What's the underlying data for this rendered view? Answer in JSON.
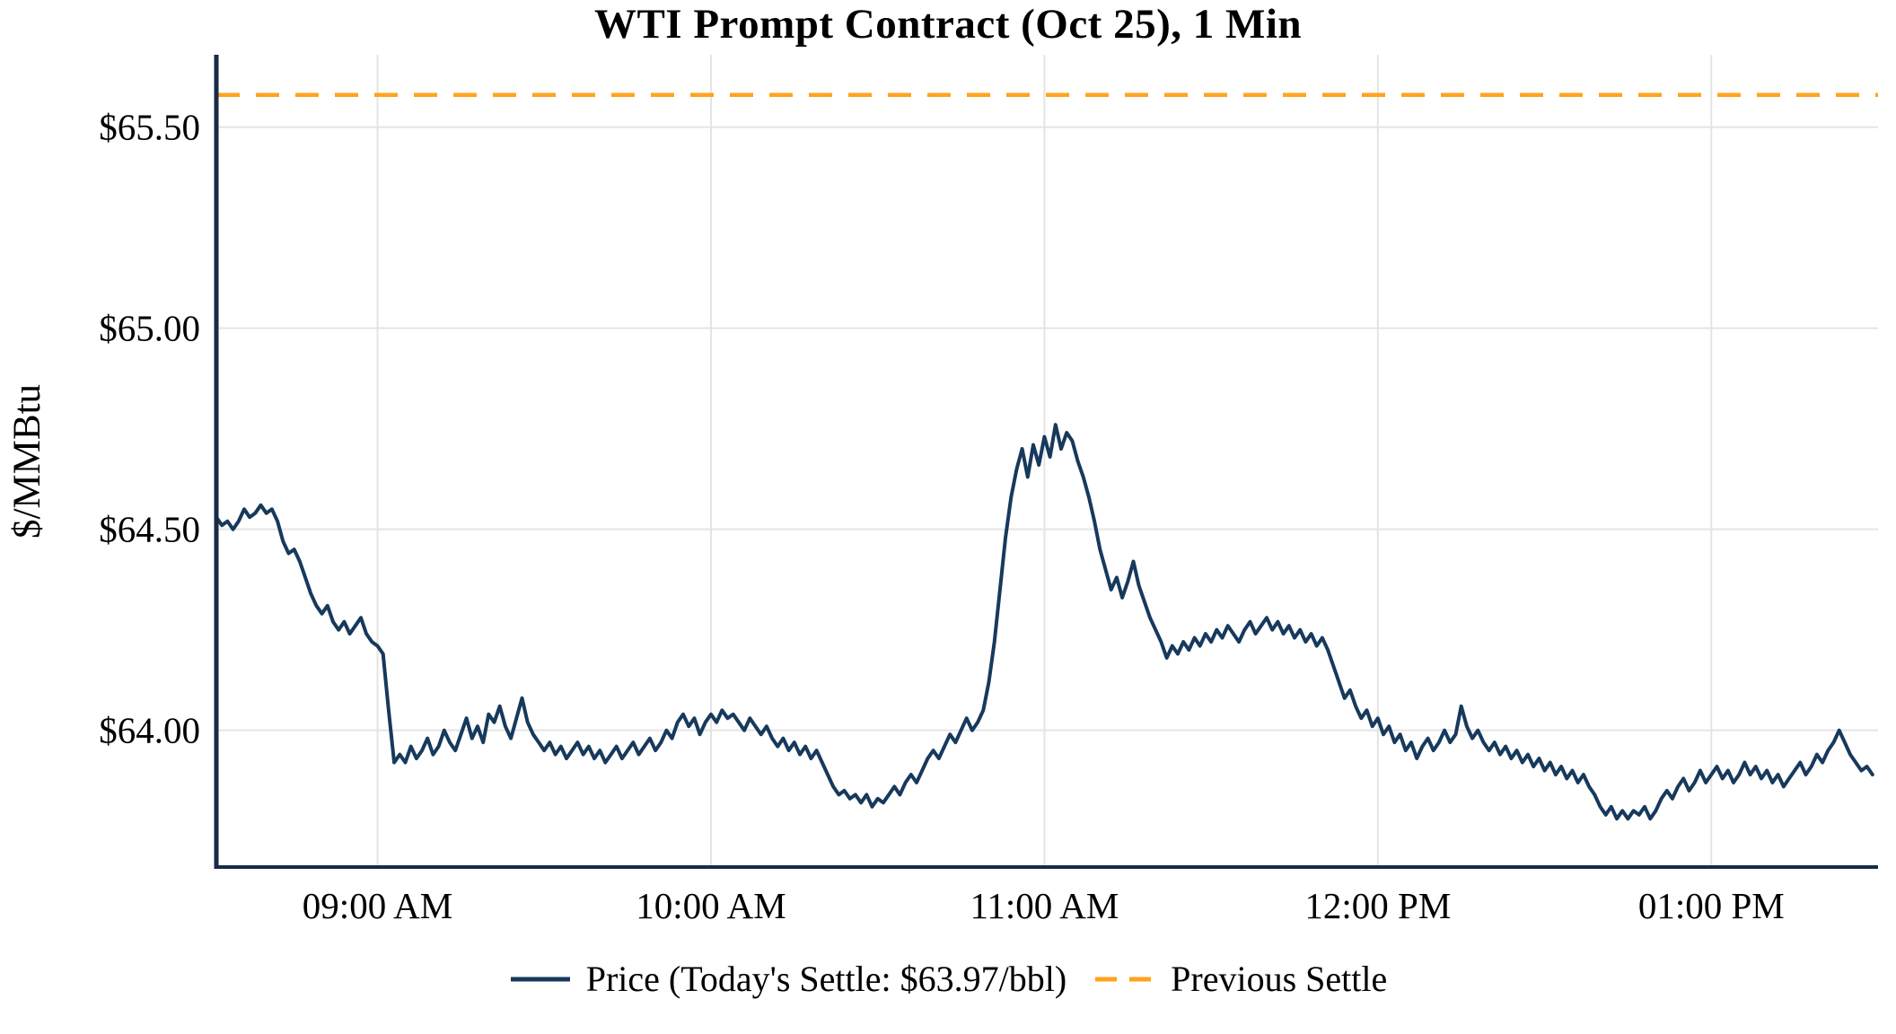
{
  "chart_data": {
    "type": "line",
    "title": "WTI Prompt Contract (Oct 25), 1 Min",
    "ylabel": "$/MMBtu",
    "xlim": [
      511,
      810
    ],
    "ylim": [
      63.66,
      65.68
    ],
    "grid": true,
    "legend_position": "bottom",
    "x_ticks": [
      {
        "value": 540,
        "label": "09:00 AM"
      },
      {
        "value": 600,
        "label": "10:00 AM"
      },
      {
        "value": 660,
        "label": "11:00 AM"
      },
      {
        "value": 720,
        "label": "12:00 PM"
      },
      {
        "value": 780,
        "label": "01:00 PM"
      }
    ],
    "y_ticks": [
      {
        "value": 65.5,
        "label": "$65.50"
      },
      {
        "value": 65.0,
        "label": "$65.00"
      },
      {
        "value": 64.5,
        "label": "$64.50"
      },
      {
        "value": 64.0,
        "label": "$64.00"
      }
    ],
    "previous_settle": 65.58,
    "todays_settle": 63.97,
    "legend": [
      {
        "label": "Price (Today's Settle: $63.97/bbl)",
        "style": "solid"
      },
      {
        "label": "Previous Settle",
        "style": "dashed"
      }
    ],
    "colors": {
      "price": "#17395C",
      "prev_settle": "#FFA31E",
      "grid": "#E4E4E4",
      "axis": "#182A46",
      "text": "#000000"
    },
    "series": [
      {
        "name": "Price",
        "t0": 511,
        "dt": 1,
        "prices": [
          64.53,
          64.51,
          64.52,
          64.5,
          64.52,
          64.55,
          64.53,
          64.54,
          64.56,
          64.54,
          64.55,
          64.52,
          64.47,
          64.44,
          64.45,
          64.42,
          64.38,
          64.34,
          64.31,
          64.29,
          64.31,
          64.27,
          64.25,
          64.27,
          64.24,
          64.26,
          64.28,
          64.24,
          64.22,
          64.21,
          64.19,
          64.05,
          63.92,
          63.94,
          63.92,
          63.96,
          63.93,
          63.95,
          63.98,
          63.94,
          63.96,
          64.0,
          63.97,
          63.95,
          63.99,
          64.03,
          63.98,
          64.01,
          63.97,
          64.04,
          64.02,
          64.06,
          64.01,
          63.98,
          64.03,
          64.08,
          64.02,
          63.99,
          63.97,
          63.95,
          63.97,
          63.94,
          63.96,
          63.93,
          63.95,
          63.97,
          63.94,
          63.96,
          63.93,
          63.95,
          63.92,
          63.94,
          63.96,
          63.93,
          63.95,
          63.97,
          63.94,
          63.96,
          63.98,
          63.95,
          63.97,
          64.0,
          63.98,
          64.02,
          64.04,
          64.01,
          64.03,
          63.99,
          64.02,
          64.04,
          64.02,
          64.05,
          64.03,
          64.04,
          64.02,
          64.0,
          64.03,
          64.01,
          63.99,
          64.01,
          63.98,
          63.96,
          63.98,
          63.95,
          63.97,
          63.94,
          63.96,
          63.93,
          63.95,
          63.92,
          63.89,
          63.86,
          63.84,
          63.85,
          63.83,
          63.84,
          63.82,
          63.84,
          63.81,
          63.83,
          63.82,
          63.84,
          63.86,
          63.84,
          63.87,
          63.89,
          63.87,
          63.9,
          63.93,
          63.95,
          63.93,
          63.96,
          63.99,
          63.97,
          64.0,
          64.03,
          64.0,
          64.02,
          64.05,
          64.12,
          64.22,
          64.35,
          64.48,
          64.58,
          64.65,
          64.7,
          64.63,
          64.71,
          64.66,
          64.73,
          64.68,
          64.76,
          64.7,
          64.74,
          64.72,
          64.67,
          64.63,
          64.58,
          64.52,
          64.45,
          64.4,
          64.35,
          64.38,
          64.33,
          64.37,
          64.42,
          64.36,
          64.32,
          64.28,
          64.25,
          64.22,
          64.18,
          64.21,
          64.19,
          64.22,
          64.2,
          64.23,
          64.21,
          64.24,
          64.22,
          64.25,
          64.23,
          64.26,
          64.24,
          64.22,
          64.25,
          64.27,
          64.24,
          64.26,
          64.28,
          64.25,
          64.27,
          64.24,
          64.26,
          64.23,
          64.25,
          64.22,
          64.24,
          64.21,
          64.23,
          64.2,
          64.16,
          64.12,
          64.08,
          64.1,
          64.06,
          64.03,
          64.05,
          64.01,
          64.03,
          63.99,
          64.01,
          63.97,
          63.99,
          63.95,
          63.97,
          63.93,
          63.96,
          63.98,
          63.95,
          63.97,
          64.0,
          63.97,
          63.99,
          64.06,
          64.01,
          63.98,
          64.0,
          63.97,
          63.95,
          63.97,
          63.94,
          63.96,
          63.93,
          63.95,
          63.92,
          63.94,
          63.91,
          63.93,
          63.9,
          63.92,
          63.89,
          63.91,
          63.88,
          63.9,
          63.87,
          63.89,
          63.86,
          63.84,
          63.81,
          63.79,
          63.81,
          63.78,
          63.8,
          63.78,
          63.8,
          63.79,
          63.81,
          63.78,
          63.8,
          63.83,
          63.85,
          63.83,
          63.86,
          63.88,
          63.85,
          63.87,
          63.9,
          63.87,
          63.89,
          63.91,
          63.88,
          63.9,
          63.87,
          63.89,
          63.92,
          63.89,
          63.91,
          63.88,
          63.9,
          63.87,
          63.89,
          63.86,
          63.88,
          63.9,
          63.92,
          63.89,
          63.91,
          63.94,
          63.92,
          63.95,
          63.97,
          64.0,
          63.97,
          63.94,
          63.92,
          63.9,
          63.91,
          63.89
        ]
      }
    ]
  }
}
